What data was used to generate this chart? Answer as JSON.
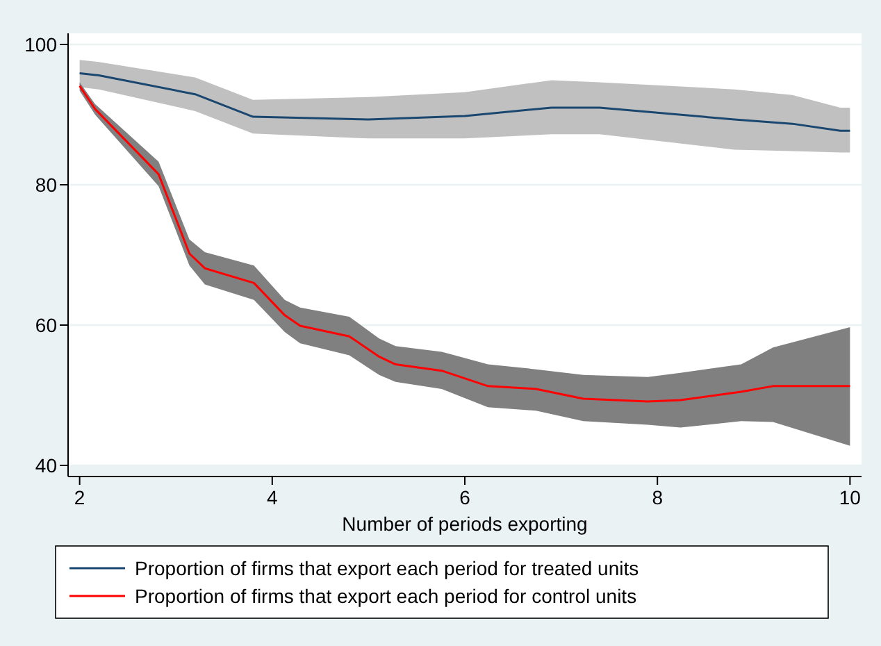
{
  "chart_data": {
    "type": "line",
    "xlabel": "Number of periods exporting",
    "xlim": [
      1.88,
      10.12
    ],
    "xticks": [
      2,
      4,
      6,
      8,
      10
    ],
    "ylim": [
      40,
      100
    ],
    "yticks": [
      40,
      60,
      80,
      100
    ],
    "grid": "y",
    "legend": "bottom",
    "line_style": "solid",
    "marker": "none",
    "series": [
      {
        "name": "Proportion of firms that export each period for treated units",
        "color": "#1a476f",
        "x": [
          2,
          2.2,
          3.2,
          3.8,
          5,
          6,
          6.9,
          7.4,
          8.8,
          9.4,
          9.9,
          10
        ],
        "values": [
          95.9,
          95.6,
          92.9,
          89.7,
          89.3,
          89.8,
          91.0,
          91.0,
          89.3,
          88.7,
          87.7,
          87.7
        ],
        "upper": [
          97.8,
          97.5,
          95.3,
          92.1,
          92.5,
          93.2,
          94.9,
          94.6,
          93.6,
          92.8,
          91.0,
          91.0
        ],
        "lower": [
          93.9,
          93.6,
          90.5,
          87.3,
          86.6,
          86.6,
          87.2,
          87.2,
          85.0,
          84.8,
          84.6,
          84.6
        ]
      },
      {
        "name": "Proportion of firms that export each period for control units",
        "color": "#ff0000",
        "x": [
          2,
          2.16,
          2.82,
          3.14,
          3.3,
          3.81,
          4.13,
          4.29,
          4.8,
          5.11,
          5.28,
          5.76,
          6.24,
          6.74,
          7.23,
          7.9,
          8.24,
          8.87,
          9.2,
          10
        ],
        "values": [
          94.1,
          90.8,
          81.5,
          70.2,
          68.1,
          66.0,
          61.4,
          59.9,
          58.4,
          55.5,
          54.4,
          53.5,
          51.3,
          50.9,
          49.5,
          49.1,
          49.3,
          50.5,
          51.3,
          51.3
        ],
        "upper": [
          94.6,
          91.5,
          83.3,
          72.2,
          70.4,
          68.5,
          63.6,
          62.5,
          61.2,
          58.1,
          57.0,
          56.2,
          54.4,
          53.7,
          52.9,
          52.6,
          53.2,
          54.4,
          56.8,
          59.7
        ],
        "lower": [
          93.4,
          90.0,
          79.8,
          68.5,
          65.8,
          63.6,
          59.0,
          57.4,
          55.7,
          52.9,
          51.9,
          50.9,
          48.3,
          47.8,
          46.3,
          45.8,
          45.4,
          46.3,
          46.2,
          42.8
        ]
      }
    ]
  }
}
